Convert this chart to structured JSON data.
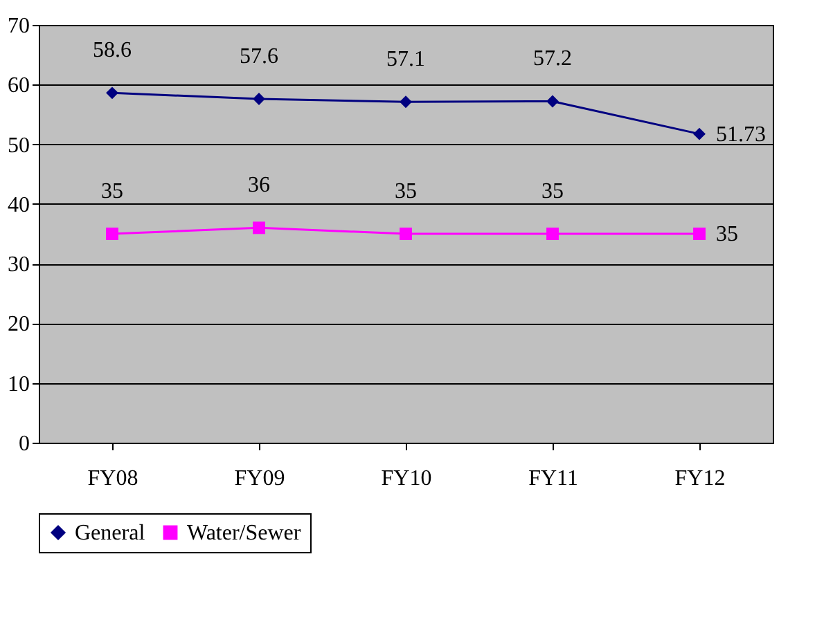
{
  "chart_data": {
    "type": "line",
    "categories": [
      "FY08",
      "FY09",
      "FY10",
      "FY11",
      "FY12"
    ],
    "series": [
      {
        "name": "General",
        "color": "#000080",
        "marker": "diamond",
        "values": [
          58.6,
          57.6,
          57.1,
          57.2,
          51.73
        ]
      },
      {
        "name": "Water/Sewer",
        "color": "#ff00ff",
        "marker": "square",
        "values": [
          35,
          36,
          35,
          35,
          35
        ]
      }
    ],
    "ylim": [
      0,
      70
    ],
    "yticks": [
      0,
      10,
      20,
      30,
      40,
      50,
      60,
      70
    ],
    "grid": "y",
    "legend": "bottom",
    "data_labels": true,
    "line_style": "solid"
  }
}
